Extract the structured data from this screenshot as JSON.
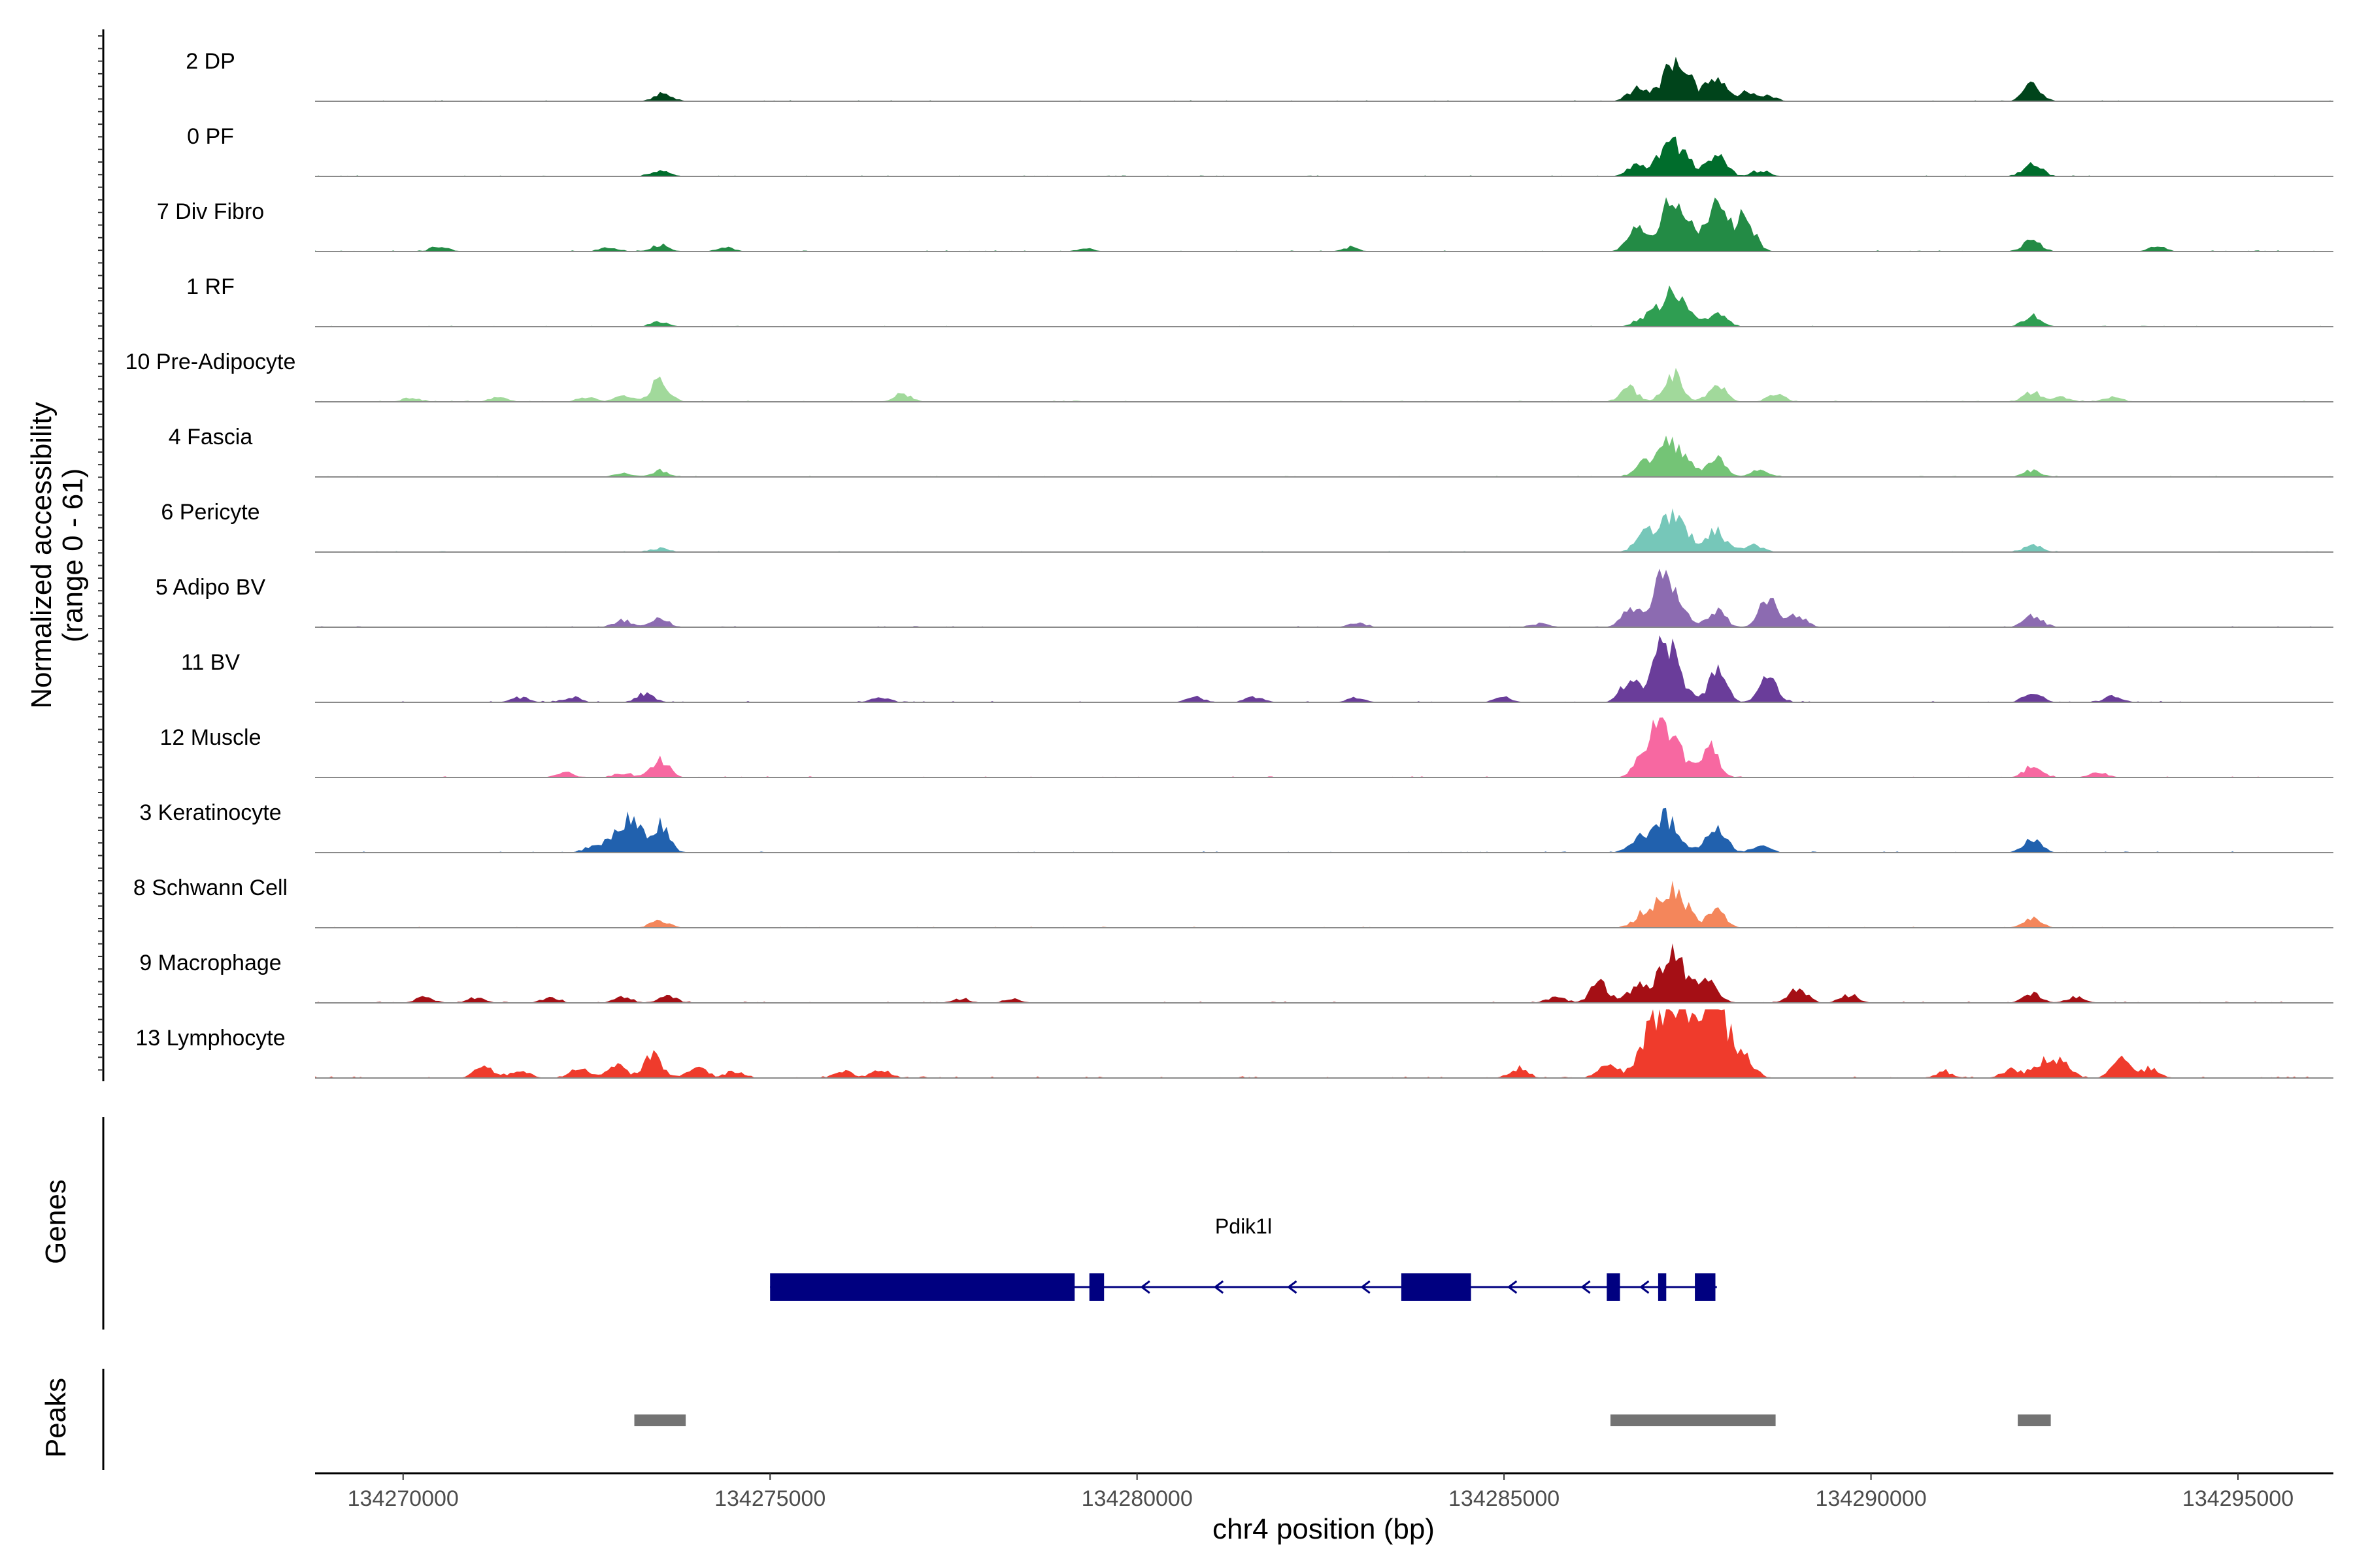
{
  "chart_data": {
    "type": "area",
    "title": "",
    "chromosome": "chr4",
    "xlabel": "chr4 position (bp)",
    "xlim": [
      134268800,
      134296300
    ],
    "xticks": [
      134270000,
      134275000,
      134280000,
      134285000,
      134290000,
      134295000
    ],
    "xtick_labels": [
      "134270000",
      "134275000",
      "134280000",
      "134285000",
      "134290000",
      "134295000"
    ],
    "y_axis_title_line1": "Normalized accessibility",
    "y_axis_title_line2": "(range 0 - 61)",
    "ylim": [
      0,
      61
    ],
    "tracks": [
      {
        "name": "2 DP",
        "color": "#00441b",
        "peaks": [
          [
            134273550,
            8
          ],
          [
            134287350,
            40
          ],
          [
            134286800,
            12
          ],
          [
            134287900,
            26
          ],
          [
            134288300,
            9
          ],
          [
            134288600,
            5
          ],
          [
            134292200,
            16
          ]
        ],
        "noise": 0.9,
        "seed": 1
      },
      {
        "name": "0 PF",
        "color": "#006d2c",
        "peaks": [
          [
            134273500,
            6
          ],
          [
            134287300,
            35
          ],
          [
            134287900,
            25
          ],
          [
            134286800,
            10
          ],
          [
            134288500,
            6
          ],
          [
            134292200,
            14
          ]
        ],
        "noise": 0.9,
        "seed": 2
      },
      {
        "name": "7 Div Fibro",
        "color": "#238b45",
        "peaks": [
          [
            134270500,
            5
          ],
          [
            134272800,
            5
          ],
          [
            134273500,
            7
          ],
          [
            134274400,
            4
          ],
          [
            134279300,
            3
          ],
          [
            134282900,
            4
          ],
          [
            134286800,
            25
          ],
          [
            134287300,
            52
          ],
          [
            134287900,
            44
          ],
          [
            134288300,
            30
          ],
          [
            134292200,
            12
          ],
          [
            134293900,
            5
          ]
        ],
        "noise": 1.0,
        "seed": 3
      },
      {
        "name": "1 RF",
        "color": "#2f9e52",
        "peaks": [
          [
            134273500,
            5
          ],
          [
            134287300,
            33
          ],
          [
            134286900,
            8
          ],
          [
            134287900,
            16
          ],
          [
            134292200,
            11
          ]
        ],
        "noise": 0.8,
        "seed": 4
      },
      {
        "name": "10 Pre-Adipocyte",
        "color": "#a1d99b",
        "peaks": [
          [
            134270100,
            4
          ],
          [
            134271300,
            5
          ],
          [
            134272500,
            5
          ],
          [
            134273500,
            22
          ],
          [
            134273000,
            6
          ],
          [
            134276800,
            8
          ],
          [
            134286700,
            14
          ],
          [
            134287300,
            28
          ],
          [
            134287900,
            17
          ],
          [
            134288700,
            7
          ],
          [
            134292200,
            10
          ],
          [
            134292600,
            5
          ],
          [
            134293300,
            5
          ]
        ],
        "noise": 1.0,
        "seed": 5
      },
      {
        "name": "4 Fascia",
        "color": "#74c476",
        "peaks": [
          [
            134273000,
            4
          ],
          [
            134273500,
            6
          ],
          [
            134287300,
            36
          ],
          [
            134286900,
            12
          ],
          [
            134287900,
            17
          ],
          [
            134288500,
            7
          ],
          [
            134292200,
            7
          ]
        ],
        "noise": 0.9,
        "seed": 6
      },
      {
        "name": "6 Pericyte",
        "color": "#76c7b9",
        "peaks": [
          [
            134273500,
            4
          ],
          [
            134287300,
            40
          ],
          [
            134286900,
            18
          ],
          [
            134287900,
            22
          ],
          [
            134288400,
            8
          ],
          [
            134292200,
            7
          ]
        ],
        "noise": 0.9,
        "seed": 7
      },
      {
        "name": "5 Adipo BV",
        "color": "#8c6bb1",
        "peaks": [
          [
            134273000,
            7
          ],
          [
            134273500,
            9
          ],
          [
            134283000,
            4
          ],
          [
            134285500,
            4
          ],
          [
            134287200,
            52
          ],
          [
            134286700,
            14
          ],
          [
            134287900,
            16
          ],
          [
            134288600,
            28
          ],
          [
            134289000,
            12
          ],
          [
            134292200,
            12
          ]
        ],
        "noise": 1.0,
        "seed": 8
      },
      {
        "name": "11 BV",
        "color": "#6a3d9a",
        "peaks": [
          [
            134271600,
            5
          ],
          [
            134272300,
            5
          ],
          [
            134273300,
            8
          ],
          [
            134276500,
            5
          ],
          [
            134280800,
            5
          ],
          [
            134281600,
            6
          ],
          [
            134283000,
            5
          ],
          [
            134285000,
            5
          ],
          [
            134287200,
            58
          ],
          [
            134286700,
            20
          ],
          [
            134287900,
            30
          ],
          [
            134288600,
            24
          ],
          [
            134292200,
            10
          ],
          [
            134293300,
            6
          ]
        ],
        "noise": 1.2,
        "seed": 9
      },
      {
        "name": "12 Muscle",
        "color": "#f768a1",
        "peaks": [
          [
            134272200,
            5
          ],
          [
            134273000,
            4
          ],
          [
            134273500,
            18
          ],
          [
            134287200,
            55
          ],
          [
            134286900,
            20
          ],
          [
            134287800,
            30
          ],
          [
            134292200,
            11
          ],
          [
            134293100,
            5
          ]
        ],
        "noise": 1.1,
        "seed": 10
      },
      {
        "name": "3 Keratinocyte",
        "color": "#2161ae",
        "peaks": [
          [
            134273050,
            33
          ],
          [
            134273500,
            26
          ],
          [
            134272600,
            7
          ],
          [
            134287200,
            35
          ],
          [
            134286800,
            12
          ],
          [
            134287900,
            29
          ],
          [
            134288500,
            8
          ],
          [
            134292200,
            13
          ]
        ],
        "noise": 1.0,
        "seed": 11
      },
      {
        "name": "8 Schwann Cell",
        "color": "#f4865b",
        "peaks": [
          [
            134273500,
            8
          ],
          [
            134287300,
            40
          ],
          [
            134286900,
            14
          ],
          [
            134287900,
            18
          ],
          [
            134292200,
            9
          ]
        ],
        "noise": 0.9,
        "seed": 12
      },
      {
        "name": "9 Macrophage",
        "color": "#a50f15",
        "peaks": [
          [
            134270300,
            6
          ],
          [
            134271000,
            5
          ],
          [
            134272000,
            5
          ],
          [
            134273000,
            6
          ],
          [
            134273600,
            8
          ],
          [
            134277600,
            4
          ],
          [
            134278300,
            4
          ],
          [
            134285700,
            6
          ],
          [
            134286300,
            20
          ],
          [
            134286800,
            16
          ],
          [
            134287300,
            50
          ],
          [
            134287800,
            20
          ],
          [
            134289000,
            15
          ],
          [
            134289700,
            8
          ],
          [
            134292200,
            9
          ],
          [
            134292800,
            6
          ]
        ],
        "noise": 1.1,
        "seed": 13
      },
      {
        "name": "13 Lymphocyte",
        "color": "#ef3b2c",
        "peaks": [
          [
            134271100,
            12
          ],
          [
            134271600,
            9
          ],
          [
            134272400,
            11
          ],
          [
            134272900,
            14
          ],
          [
            134273400,
            26
          ],
          [
            134274000,
            12
          ],
          [
            134274500,
            7
          ],
          [
            134276000,
            8
          ],
          [
            134276500,
            9
          ],
          [
            134285200,
            10
          ],
          [
            134286400,
            12
          ],
          [
            134287000,
            38
          ],
          [
            134287300,
            61
          ],
          [
            134287700,
            42
          ],
          [
            134287950,
            52
          ],
          [
            134288300,
            14
          ],
          [
            134291000,
            6
          ],
          [
            134291900,
            9
          ],
          [
            134292300,
            16
          ],
          [
            134292600,
            20
          ],
          [
            134293400,
            18
          ],
          [
            134293800,
            10
          ]
        ],
        "noise": 1.6,
        "seed": 14
      }
    ],
    "genes": {
      "title": "Genes",
      "name": "Pdik1l",
      "color": "#000080",
      "strand": "-",
      "range": [
        134275000,
        134287900
      ],
      "exons": [
        [
          134275000,
          134279150
        ],
        [
          134279350,
          134279550
        ],
        [
          134283600,
          134284550
        ],
        [
          134286400,
          134286580
        ],
        [
          134287100,
          134287210
        ],
        [
          134287600,
          134287880
        ]
      ],
      "arrows": [
        134280100,
        134281100,
        134282100,
        134283100,
        134285100,
        134286100,
        134286900
      ]
    },
    "peaks_track": {
      "title": "Peaks",
      "color": "#737373",
      "regions": [
        [
          134273150,
          134273850
        ],
        [
          134286450,
          134288700
        ],
        [
          134292000,
          134292450
        ]
      ]
    }
  }
}
